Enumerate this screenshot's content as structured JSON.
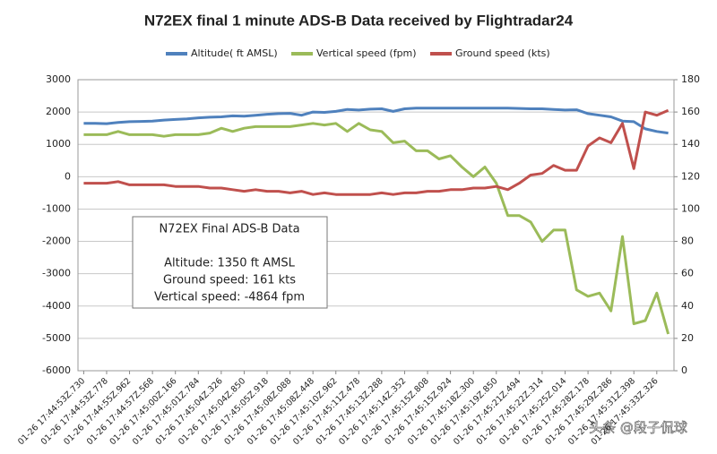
{
  "chart_data": {
    "type": "line",
    "title": "N72EX final 1 minute ADS-B Data received by Flightradar24",
    "categories": [
      "01-26 17:44:53Z.730",
      null,
      "01-26 17:44:53Z.778",
      null,
      "01-26 17:44:55Z.962",
      null,
      "01-26 17:44:57Z.568",
      null,
      "01-26 17:45:00Z.166",
      null,
      "01-26 17:45:01Z.784",
      null,
      "01-26 17:45:04Z.326",
      null,
      "01-26 17:45:04Z.850",
      null,
      "01-26 17:45:05Z.918",
      null,
      "01-26 17:45:08Z.088",
      null,
      "01-26 17:45:08Z.448",
      null,
      "01-26 17:45:10Z.962",
      null,
      "01-26 17:45:11Z.478",
      null,
      "01-26 17:45:13Z.288",
      null,
      "01-26 17:45:14Z.352",
      null,
      "01-26 17:45:15Z.808",
      null,
      "01-26 17:45:15Z.924",
      null,
      "01-26 17:45:18Z.300",
      null,
      "01-26 17:45:19Z.850",
      null,
      "01-26 17:45:21Z.494",
      null,
      "01-26 17:45:22Z.314",
      null,
      "01-26 17:45:25Z.014",
      null,
      "01-26 17:45:28Z.178",
      null,
      "01-26 17:45:29Z.286",
      null,
      "01-26 17:45:31Z.398",
      null,
      "01-26 17:45:33Z.326",
      null
    ],
    "series": [
      {
        "name": "Altitude( ft AMSL)",
        "color": "#4f81bd",
        "axis": "y",
        "values": [
          1650,
          1650,
          1640,
          1680,
          1700,
          1710,
          1720,
          1750,
          1770,
          1790,
          1820,
          1840,
          1850,
          1880,
          1870,
          1900,
          1930,
          1950,
          1960,
          1900,
          2000,
          1990,
          2020,
          2080,
          2060,
          2090,
          2100,
          2020,
          2100,
          2120,
          2120,
          2120,
          2120,
          2120,
          2120,
          2120,
          2120,
          2120,
          2110,
          2100,
          2100,
          2080,
          2060,
          2070,
          1950,
          1900,
          1850,
          1720,
          1700,
          1480,
          1400,
          1350
        ]
      },
      {
        "name": "Vertical speed (fpm)",
        "color": "#9bbb59",
        "axis": "y",
        "values": [
          1300,
          1300,
          1300,
          1400,
          1300,
          1300,
          1300,
          1250,
          1300,
          1300,
          1300,
          1350,
          1500,
          1400,
          1500,
          1550,
          1550,
          1550,
          1550,
          1600,
          1650,
          1600,
          1650,
          1400,
          1650,
          1450,
          1400,
          1050,
          1100,
          800,
          800,
          550,
          650,
          300,
          0,
          300,
          -200,
          -1200,
          -1200,
          -1400,
          -2000,
          -1650,
          -1650,
          -3500,
          -3700,
          -3600,
          -4150,
          -1850,
          -4550,
          -4450,
          -3600,
          -4864
        ]
      },
      {
        "name": "Ground speed (kts)",
        "color": "#c0504d",
        "axis": "y2",
        "values": [
          116,
          116,
          116,
          117,
          115,
          115,
          115,
          115,
          114,
          114,
          114,
          113,
          113,
          112,
          111,
          112,
          111,
          111,
          110,
          111,
          109,
          110,
          109,
          109,
          109,
          109,
          110,
          109,
          110,
          110,
          111,
          111,
          112,
          112,
          113,
          113,
          114,
          112,
          116,
          121,
          122,
          127,
          124,
          124,
          139,
          144,
          141,
          153,
          125,
          160,
          158,
          161
        ]
      }
    ],
    "ylim": [
      -6000,
      3000
    ],
    "yticks": [
      -6000,
      -5000,
      -4000,
      -3000,
      -2000,
      -1000,
      0,
      1000,
      2000,
      3000
    ],
    "y2lim": [
      0,
      180
    ],
    "y2ticks": [
      0,
      20,
      40,
      60,
      80,
      100,
      120,
      140,
      160,
      180
    ],
    "grid": true,
    "annotation": {
      "title": "N72EX Final ADS-B Data",
      "lines": [
        "Altitude: 1350 ft AMSL",
        "Ground speed: 161 kts",
        "Vertical speed: -4864 fpm"
      ]
    },
    "watermark": "头条 @段子侃球"
  }
}
